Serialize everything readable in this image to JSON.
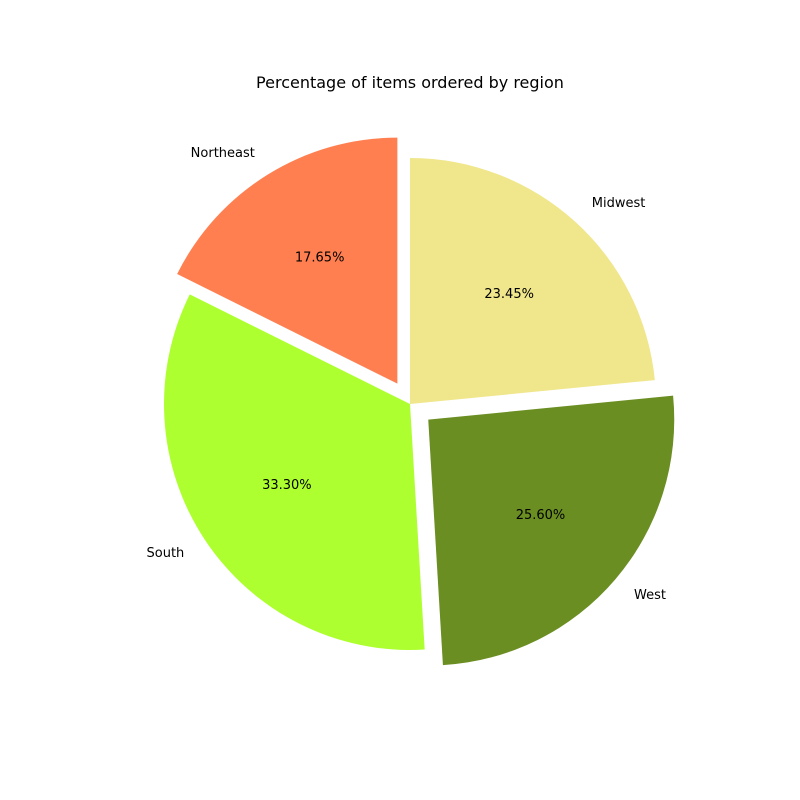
{
  "chart_data": {
    "type": "pie",
    "title": "Percentage of items ordered by region",
    "slices": [
      {
        "label": "Northeast",
        "value": 17.65,
        "value_text": "17.65%",
        "color": "#FF7F50",
        "exploded": true
      },
      {
        "label": "South",
        "value": 33.3,
        "value_text": "33.30%",
        "color": "#ADFF2F",
        "exploded": false
      },
      {
        "label": "West",
        "value": 25.6,
        "value_text": "25.60%",
        "color": "#6B8E23",
        "exploded": true
      },
      {
        "label": "Midwest",
        "value": 23.45,
        "value_text": "23.45%",
        "color": "#F0E68C",
        "exploded": false
      }
    ],
    "start_angle_deg": 90,
    "direction": "counterclockwise",
    "legend": "none"
  }
}
